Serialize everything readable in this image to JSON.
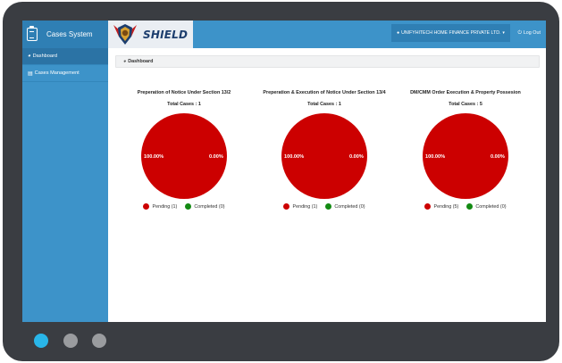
{
  "app": {
    "title": "Cases System",
    "logo_text": "SHIELD"
  },
  "sidebar": {
    "items": [
      {
        "label": "Dashboard",
        "icon": "dashboard-icon",
        "active": true
      },
      {
        "label": "Cases Management",
        "icon": "list-icon",
        "active": false
      }
    ]
  },
  "header": {
    "company": "UNIFYHITECH HOME FINANCE PRIVATE LTD.",
    "logout_label": "Log Out"
  },
  "dashboard": {
    "title": "Dashboard"
  },
  "colors": {
    "pending": "#cc0000",
    "completed": "#138a13",
    "sidebar": "#3d93c9",
    "frame": "#3a3d42"
  },
  "cards": [
    {
      "title": "Preperation of Notice Under Section 13/2",
      "total": "Total Cases : 1",
      "pct_left": "100.00%",
      "pct_right": "0.00%",
      "pending_label": "Pending (1)",
      "completed_label": "Completed (0)",
      "pending_count": 1,
      "completed_count": 0
    },
    {
      "title": "Preperation & Execution of Notice Under Section 13/4",
      "total": "Total Cases : 1",
      "pct_left": "100.00%",
      "pct_right": "0.00%",
      "pending_label": "Pending (1)",
      "completed_label": "Completed (0)",
      "pending_count": 1,
      "completed_count": 0
    },
    {
      "title": "DM/CMM Order Execution & Property Possesion",
      "total": "Total Cases : 5",
      "pct_left": "100.00%",
      "pct_right": "0.00%",
      "pending_label": "Pending (5)",
      "completed_label": "Completed (0)",
      "pending_count": 5,
      "completed_count": 0
    }
  ]
}
